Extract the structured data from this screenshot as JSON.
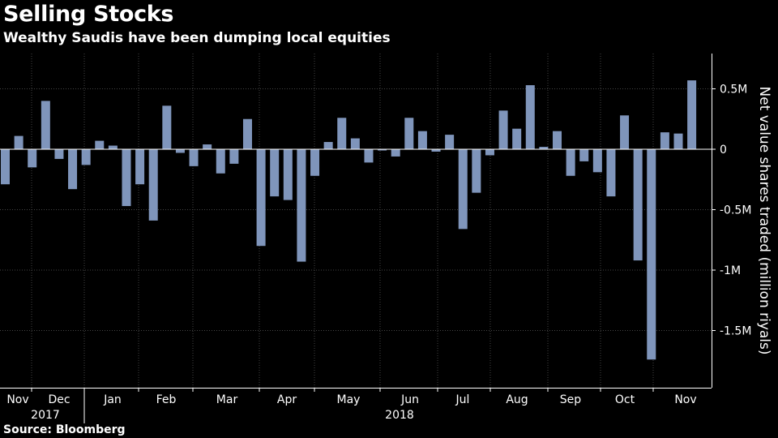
{
  "title": "Selling Stocks",
  "subtitle": "Wealthy Saudis have been dumping local equities",
  "source": "Source: Bloomberg",
  "colors": {
    "bar": "#7f95bb",
    "grid": "#454545",
    "text": "#ffffff",
    "background": "#000000"
  },
  "chart_data": {
    "type": "bar",
    "title": "Selling Stocks",
    "subtitle": "Wealthy Saudis have been dumping local equities",
    "ylabel": "Net value shares traded (million riyals)",
    "xlabel": "",
    "ylim": [
      -1.95,
      0.8
    ],
    "yticks": [
      0.5,
      0,
      -0.5,
      -1,
      -1.5
    ],
    "ytick_labels": [
      "0.5M",
      "0",
      "-0.5M",
      "-1M",
      "-1.5M"
    ],
    "grid": true,
    "y_axis_position": "right",
    "month_labels": [
      "Nov",
      "Dec",
      "Jan",
      "Feb",
      "Mar",
      "Apr",
      "May",
      "Jun",
      "Jul",
      "Aug",
      "Sep",
      "Oct",
      "Nov"
    ],
    "year_labels": [
      "2017",
      "2018"
    ],
    "values": [
      -0.29,
      0.11,
      -0.15,
      0.4,
      -0.08,
      -0.33,
      -0.13,
      0.07,
      0.03,
      -0.47,
      -0.29,
      -0.59,
      0.36,
      -0.03,
      -0.14,
      0.04,
      -0.2,
      -0.12,
      0.25,
      -0.8,
      -0.39,
      -0.42,
      -0.93,
      -0.22,
      0.06,
      0.26,
      0.09,
      -0.11,
      -0.01,
      -0.06,
      0.26,
      0.15,
      -0.02,
      0.12,
      -0.66,
      -0.36,
      -0.05,
      0.32,
      0.17,
      0.53,
      0.02,
      0.15,
      -0.22,
      -0.1,
      -0.19,
      -0.39,
      0.28,
      -0.92,
      -1.74,
      0.14,
      0.13,
      0.57
    ]
  }
}
